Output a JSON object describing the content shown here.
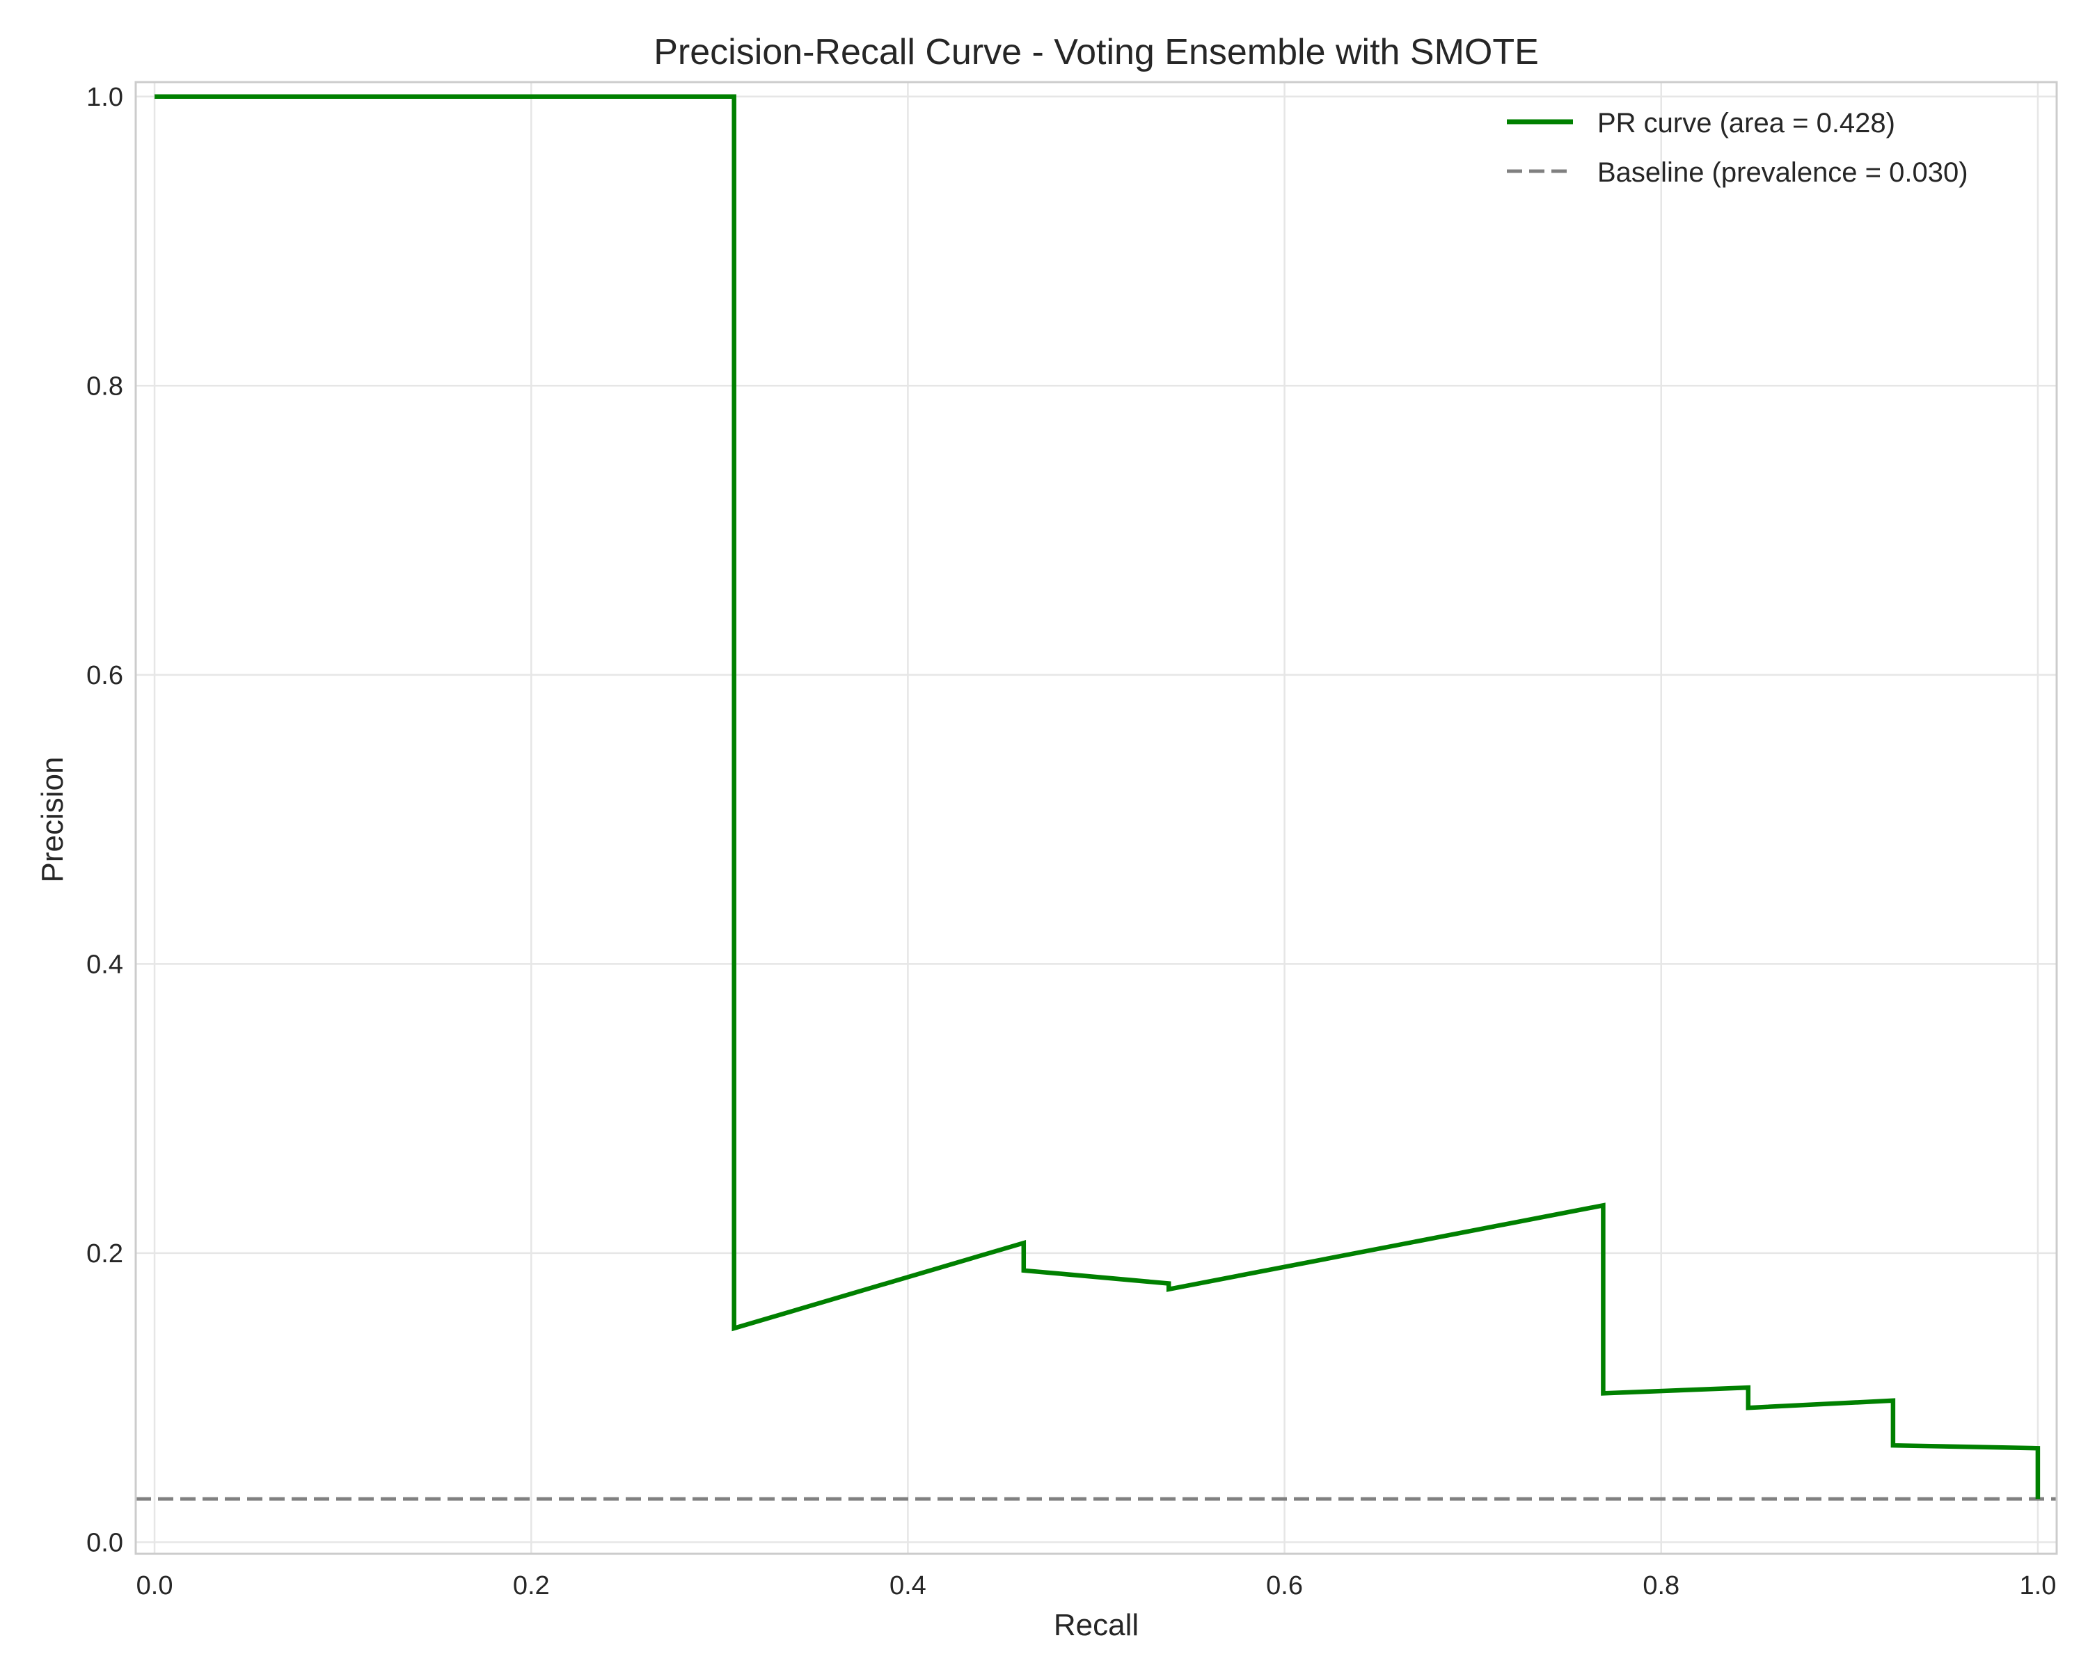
{
  "chart_data": {
    "type": "line",
    "title": "Precision-Recall Curve - Voting Ensemble with SMOTE",
    "xlabel": "Recall",
    "ylabel": "Precision",
    "xlim": [
      -0.01,
      1.01
    ],
    "ylim": [
      -0.008,
      1.01
    ],
    "grid": true,
    "legend_position": "top-right",
    "x_ticks": [
      "0.0",
      "0.2",
      "0.4",
      "0.6",
      "0.8",
      "1.0"
    ],
    "y_ticks": [
      "0.0",
      "0.2",
      "0.4",
      "0.6",
      "0.8",
      "1.0"
    ],
    "series": [
      {
        "name": "PR curve (area = 0.428)",
        "color": "#008000",
        "style": "solid",
        "x": [
          0.0,
          0.3077,
          0.3077,
          0.4615,
          0.4615,
          0.5385,
          0.5385,
          0.7692,
          0.7692,
          0.8462,
          0.8462,
          0.9231,
          0.9231,
          1.0,
          1.0
        ],
        "y": [
          1.0,
          1.0,
          0.148,
          0.207,
          0.188,
          0.179,
          0.175,
          0.233,
          0.103,
          0.107,
          0.093,
          0.098,
          0.067,
          0.065,
          0.03
        ]
      },
      {
        "name": "Baseline (prevalence = 0.030)",
        "color": "#808080",
        "style": "dashed",
        "x": [
          -0.01,
          1.01
        ],
        "y": [
          0.03,
          0.03
        ]
      }
    ]
  }
}
